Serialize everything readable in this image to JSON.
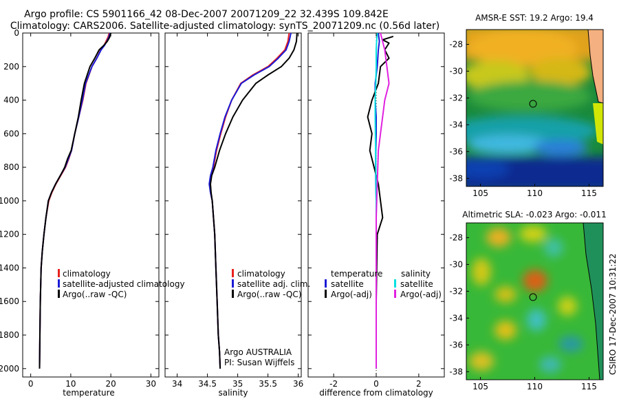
{
  "title": {
    "line1": "Argo profile: CS 5901166_42 08-Dec-2007 20071209_22 32.439S 109.842E",
    "line2": "Climatology: CARS2006. Satellite-adjusted climatology: synTS_20071209.nc (0.56d later)"
  },
  "side_label": "CSIRO 17-Dec-2007 10:31:22",
  "colors": {
    "climatology": "#e8201e",
    "satellite": "#1a1ad6",
    "argo": "#000000",
    "sal_satellite": "#00e0e0",
    "sal_argo": "#e020e0"
  },
  "chart_data": [
    {
      "id": "temperature",
      "type": "line",
      "xlabel": "temperature",
      "ylabel": "",
      "xlim": [
        -2,
        32
      ],
      "ylim": [
        2050,
        0
      ],
      "xticks": [
        0,
        10,
        20,
        30
      ],
      "yticks": [
        0,
        200,
        400,
        600,
        800,
        1000,
        1200,
        1400,
        1600,
        1800,
        2000
      ],
      "legend": [
        "climatology",
        "satellite-adjusted climatology",
        "Argo(..raw -QC)"
      ],
      "series": [
        {
          "name": "climatology",
          "color": "climatology",
          "x": [
            19.6,
            19.3,
            18.8,
            18.3,
            17.5,
            16.5,
            15.3,
            13.8,
            13,
            12,
            11,
            10.2,
            9.5,
            8.7,
            7.5,
            6.3,
            5.3,
            4.5,
            3.8,
            3.3,
            2.9,
            2.6,
            2.4,
            2.3,
            2.2
          ],
          "y": [
            0,
            25,
            50,
            75,
            100,
            150,
            200,
            300,
            400,
            500,
            600,
            700,
            750,
            800,
            850,
            900,
            950,
            1000,
            1100,
            1200,
            1300,
            1400,
            1600,
            1800,
            2000
          ]
        },
        {
          "name": "satellite-adjusted climatology",
          "color": "satellite",
          "x": [
            19.8,
            19.5,
            19,
            18.4,
            17.6,
            16.5,
            15.3,
            13.7,
            12.9,
            12,
            11,
            10.2,
            9.4,
            8.6,
            7.4,
            6.2,
            5.2,
            4.4,
            3.8,
            3.3,
            2.9,
            2.6,
            2.4,
            2.3,
            2.2
          ],
          "y": [
            0,
            25,
            50,
            75,
            100,
            150,
            200,
            300,
            400,
            500,
            600,
            700,
            750,
            800,
            850,
            900,
            950,
            1000,
            1100,
            1200,
            1300,
            1400,
            1600,
            1800,
            2000
          ]
        },
        {
          "name": "Argo(..raw -QC)",
          "color": "argo",
          "x": [
            20,
            19.7,
            19.1,
            18.2,
            17.1,
            16,
            14.8,
            13.4,
            12.6,
            11.9,
            11,
            10.1,
            9.2,
            8.5,
            7.4,
            6.2,
            5.2,
            4.4,
            3.8,
            3.3,
            2.9,
            2.6,
            2.4,
            2.3,
            2.2
          ],
          "y": [
            0,
            25,
            50,
            75,
            100,
            150,
            200,
            300,
            400,
            500,
            600,
            700,
            750,
            800,
            850,
            900,
            950,
            1000,
            1100,
            1200,
            1300,
            1400,
            1600,
            1800,
            2000
          ]
        }
      ]
    },
    {
      "id": "salinity",
      "type": "line",
      "xlabel": "salinity",
      "ylabel": "",
      "xlim": [
        33.8,
        36.05
      ],
      "ylim": [
        2050,
        0
      ],
      "xticks": [
        34,
        34.5,
        35,
        35.5,
        36
      ],
      "legend": [
        "climatology",
        "satellite adj. clim.",
        "Argo(..raw -QC)"
      ],
      "annotation": [
        "Argo AUSTRALIA",
        "PI: Susan Wijffels"
      ],
      "series": [
        {
          "name": "climatology",
          "color": "climatology",
          "x": [
            35.85,
            35.83,
            35.78,
            35.65,
            35.5,
            35.25,
            35.05,
            34.9,
            34.8,
            34.72,
            34.65,
            34.6,
            34.56,
            34.54,
            34.55,
            34.58,
            34.6,
            34.62,
            34.64,
            34.66,
            34.68,
            34.7,
            34.71
          ],
          "y": [
            0,
            50,
            100,
            150,
            200,
            250,
            300,
            400,
            500,
            600,
            700,
            800,
            850,
            900,
            950,
            1000,
            1100,
            1200,
            1400,
            1600,
            1800,
            1900,
            2000
          ]
        },
        {
          "name": "satellite adj. clim.",
          "color": "satellite",
          "x": [
            35.88,
            35.85,
            35.8,
            35.67,
            35.52,
            35.27,
            35.06,
            34.9,
            34.79,
            34.71,
            34.64,
            34.59,
            34.55,
            34.53,
            34.55,
            34.58,
            34.6,
            34.62,
            34.64,
            34.66,
            34.68,
            34.7,
            34.71
          ],
          "y": [
            0,
            50,
            100,
            150,
            200,
            250,
            300,
            400,
            500,
            600,
            700,
            800,
            850,
            900,
            950,
            1000,
            1100,
            1200,
            1400,
            1600,
            1800,
            1900,
            2000
          ]
        },
        {
          "name": "Argo(..raw -QC)",
          "color": "argo",
          "x": [
            35.98,
            35.97,
            35.93,
            35.85,
            35.72,
            35.5,
            35.3,
            35.08,
            34.92,
            34.8,
            34.7,
            34.62,
            34.57,
            34.55,
            34.56,
            34.58,
            34.6,
            34.62,
            34.64,
            34.66,
            34.68,
            34.7,
            34.71
          ],
          "y": [
            0,
            50,
            100,
            150,
            200,
            250,
            300,
            400,
            500,
            600,
            700,
            800,
            850,
            900,
            950,
            1000,
            1100,
            1200,
            1400,
            1600,
            1800,
            1900,
            2000
          ]
        }
      ]
    },
    {
      "id": "difference",
      "type": "line",
      "xlabel": "difference from climatology",
      "ylabel": "",
      "xlim": [
        -3.2,
        3.2
      ],
      "ylim": [
        2050,
        0
      ],
      "xticks": [
        -2,
        0,
        2
      ],
      "legend_headers": [
        "temperature",
        "salinity"
      ],
      "legend_left": [
        "satellite",
        "Argo(-adj)"
      ],
      "legend_right": [
        "satellite",
        "Argo(-adj)"
      ],
      "series": [
        {
          "name": "temperature satellite",
          "color": "satellite",
          "x": [
            0.1,
            0.15,
            0.1,
            0.05,
            -0.05,
            -0.05,
            0,
            0,
            -0.02,
            -0.03,
            -0.02,
            0,
            0,
            0,
            0
          ],
          "y": [
            0,
            50,
            100,
            200,
            300,
            400,
            500,
            600,
            700,
            800,
            900,
            1000,
            1200,
            1600,
            2000
          ]
        },
        {
          "name": "temperature Argo(-adj)",
          "color": "argo",
          "x": [
            0.8,
            0.3,
            0.6,
            0.4,
            0.6,
            0.2,
            0.1,
            -0.2,
            -0.4,
            -0.2,
            -0.3,
            -0.1,
            0.1,
            0.3,
            0.05,
            0,
            0
          ],
          "y": [
            20,
            40,
            60,
            100,
            150,
            200,
            300,
            400,
            500,
            600,
            700,
            800,
            900,
            1100,
            1200,
            1600,
            2000
          ]
        },
        {
          "name": "salinity satellite",
          "color": "sal_satellite",
          "x": [
            0.05,
            0.02,
            0,
            0,
            -0.02,
            -0.05,
            -0.05,
            -0.04,
            -0.02,
            0,
            0,
            0,
            0
          ],
          "y": [
            0,
            50,
            100,
            200,
            300,
            400,
            500,
            600,
            800,
            1000,
            1200,
            1600,
            2000
          ]
        },
        {
          "name": "salinity Argo(-adj)",
          "color": "sal_argo",
          "x": [
            0.2,
            0.3,
            0.4,
            0.5,
            0.6,
            0.4,
            0.3,
            0.2,
            0.1,
            0.05,
            0,
            0,
            0
          ],
          "y": [
            0,
            50,
            100,
            200,
            300,
            400,
            500,
            600,
            700,
            900,
            1100,
            1600,
            2000
          ]
        }
      ]
    }
  ],
  "maps": [
    {
      "id": "sst",
      "title": "AMSR-E SST: 19.2 Argo: 19.4",
      "xticks": [
        105,
        110,
        115
      ],
      "yticks": [
        -28,
        -30,
        -32,
        -34,
        -36,
        -38
      ],
      "marker": {
        "lon": 109.842,
        "lat": -32.439
      }
    },
    {
      "id": "sla",
      "title": "Altimetric SLA: -0.023 Argo: -0.011",
      "xticks": [
        105,
        110,
        115
      ],
      "yticks": [
        -28,
        -30,
        -32,
        -34,
        -36,
        -38
      ],
      "marker": {
        "lon": 109.842,
        "lat": -32.439
      }
    }
  ]
}
